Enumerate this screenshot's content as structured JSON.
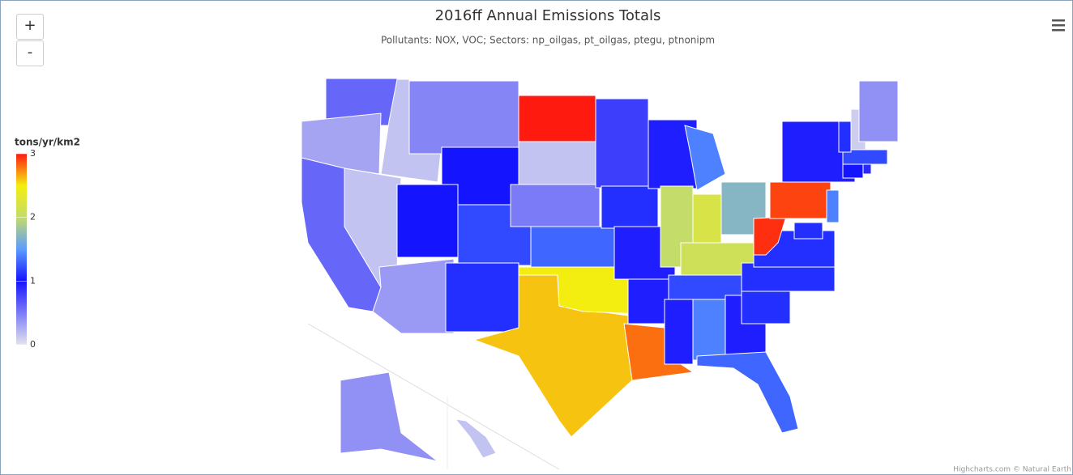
{
  "chart_data": {
    "type": "choropleth",
    "title": "2016ff Annual Emissions Totals",
    "subtitle": "Pollutants: NOX, VOC; Sectors: np_oilgas, pt_oilgas, ptegu, ptnonipm",
    "legend_title": "tons/yr/km2",
    "colorlim": [
      0,
      3
    ],
    "colorticks": [
      0,
      1,
      2,
      3
    ],
    "color_stops": [
      [
        0,
        "#e2e2ee"
      ],
      [
        1,
        "#1414ff"
      ],
      [
        1.5,
        "#5c9cff"
      ],
      [
        2,
        "#c4dc6a"
      ],
      [
        2.5,
        "#f4ee10"
      ],
      [
        3,
        "#ff1a10"
      ]
    ],
    "values": [
      0.6,
      0.3,
      0.6,
      0.15,
      0.15,
      0.45,
      1.0,
      1.0,
      0.35,
      1.2,
      1.1,
      3.0,
      0.15,
      0.5,
      1.3,
      2.6,
      2.5,
      0.8,
      1.1,
      0.95,
      0.95,
      2.8,
      0.95,
      2.0,
      1.4,
      2.2,
      1.7,
      2.1,
      1.2,
      0.95,
      1.4,
      0.95,
      1.3,
      1.1,
      1.1,
      1.1,
      2.95,
      2.9,
      0.95,
      1.4,
      1.1,
      1.0,
      0.9,
      1.2,
      1.1,
      0.1,
      0.4,
      0.4,
      0.15,
      2.0
    ],
    "zoom_in": "+",
    "zoom_out": "-",
    "credits": "Highcharts.com © Natural Earth"
  }
}
